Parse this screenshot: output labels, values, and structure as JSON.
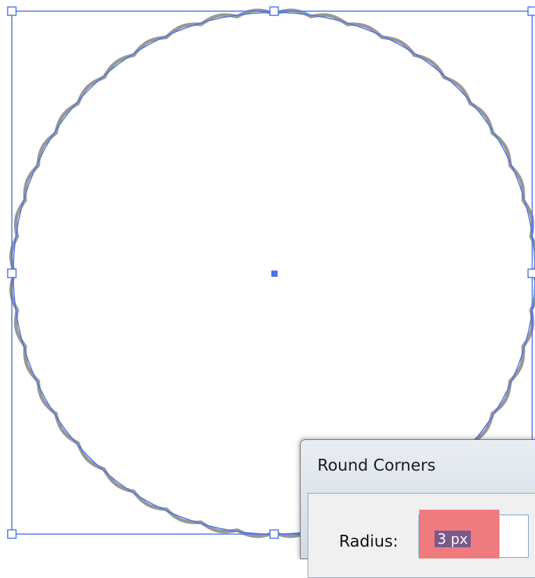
{
  "dialog": {
    "title": "Round Corners",
    "radius_label": "Radius:",
    "radius_value": "3 px"
  }
}
